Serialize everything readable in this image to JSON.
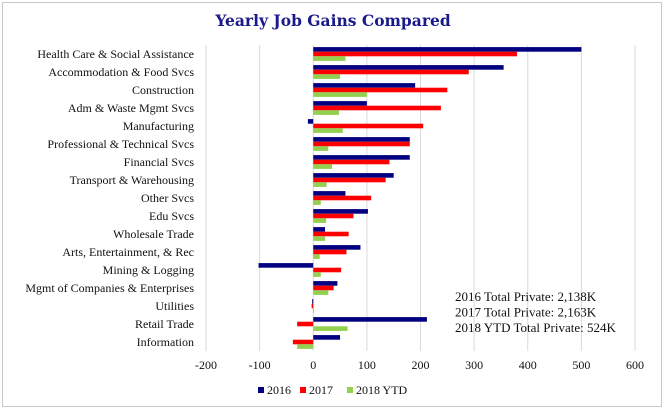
{
  "chart_data": {
    "type": "bar",
    "orientation": "horizontal",
    "title": "Yearly Job Gains Compared",
    "xlabel": "",
    "ylabel": "",
    "xlim": [
      -200,
      600
    ],
    "xticks": [
      -200,
      -100,
      0,
      100,
      200,
      300,
      400,
      500,
      600
    ],
    "grid": true,
    "legend_position": "bottom",
    "categories": [
      "Health Care & Social Assistance",
      "Accommodation & Food Svcs",
      "Construction",
      "Adm & Waste Mgmt Svcs",
      "Manufacturing",
      "Professional & Technical Svcs",
      "Financial Svcs",
      "Transport & Warehousing",
      "Other Svcs",
      "Edu Svcs",
      "Wholesale Trade",
      "Arts, Entertainment, & Rec",
      "Mining & Logging",
      "Mgmt of Companies & Enterprises",
      "Utilities",
      "Retail Trade",
      "Information"
    ],
    "series": [
      {
        "name": "2016",
        "color": "#000080",
        "values": [
          500,
          355,
          190,
          100,
          -10,
          180,
          180,
          150,
          60,
          102,
          22,
          88,
          -102,
          45,
          -2,
          212,
          50
        ]
      },
      {
        "name": "2017",
        "color": "#ff0000",
        "values": [
          380,
          290,
          250,
          238,
          205,
          180,
          142,
          135,
          108,
          75,
          66,
          62,
          52,
          38,
          -3,
          -30,
          -38
        ]
      },
      {
        "name": "2018 YTD",
        "color": "#92d050",
        "values": [
          60,
          50,
          100,
          48,
          55,
          28,
          35,
          25,
          14,
          24,
          22,
          12,
          14,
          28,
          1,
          64,
          -30
        ]
      }
    ],
    "annotations": [
      "2016 Total Private: 2,138K",
      "2017 Total Private: 2,163K",
      "2018 YTD Total Private: 524K"
    ]
  }
}
